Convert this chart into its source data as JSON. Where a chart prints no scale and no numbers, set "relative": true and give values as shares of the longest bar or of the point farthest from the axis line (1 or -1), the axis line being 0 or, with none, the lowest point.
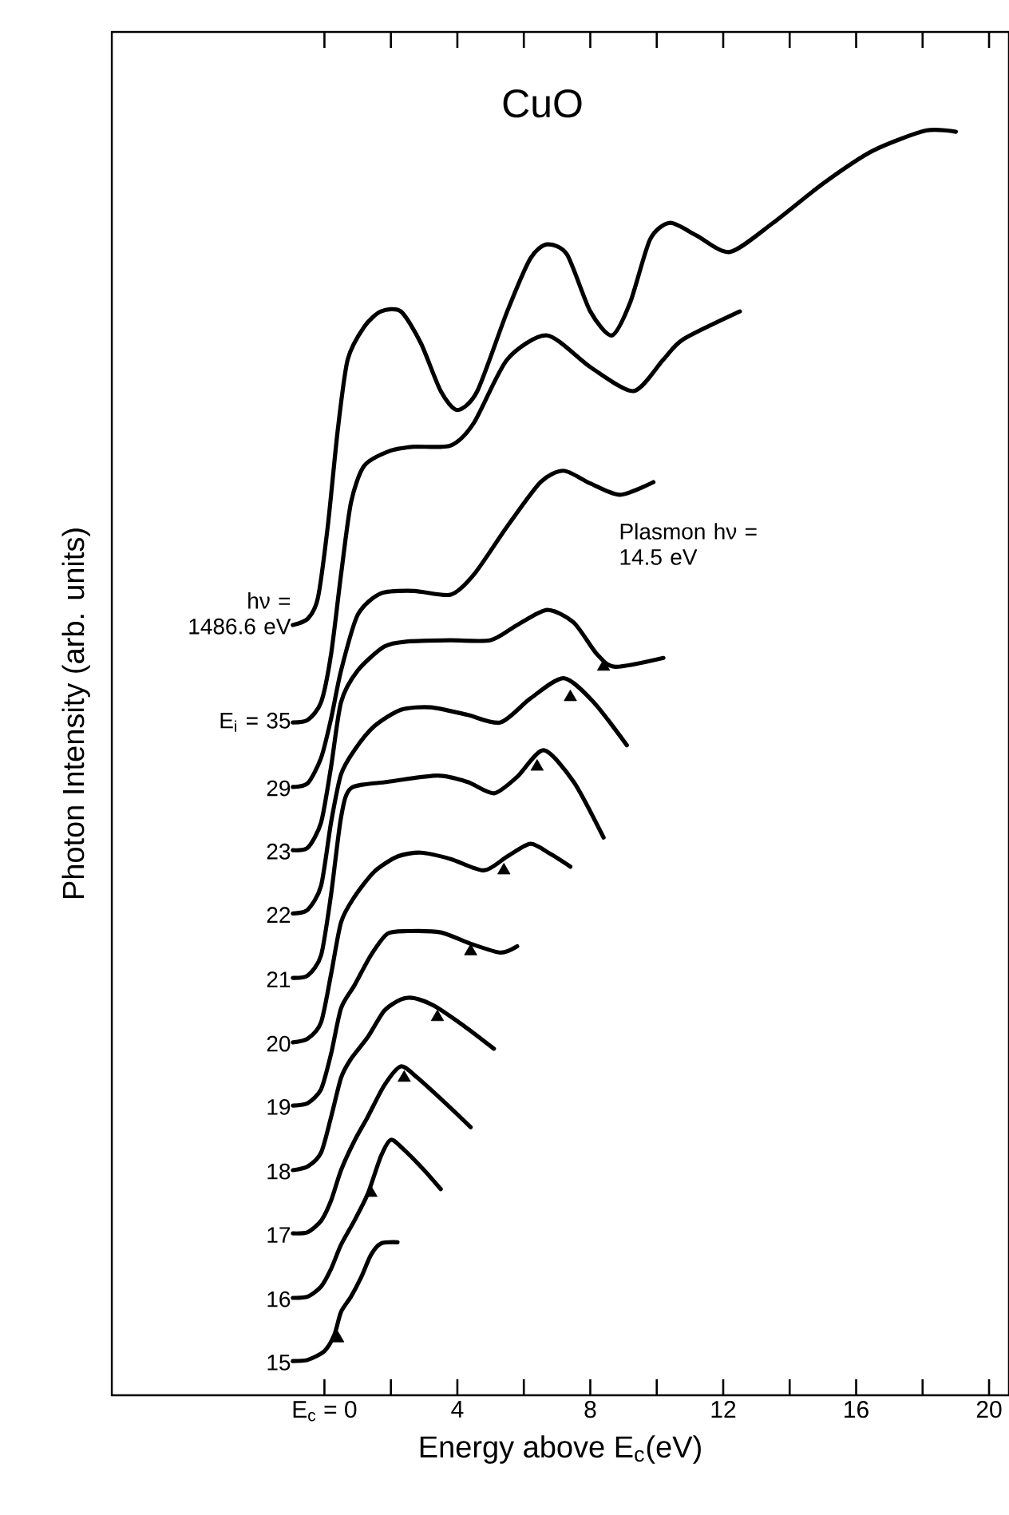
{
  "chart_data": {
    "type": "line",
    "title": "CuO",
    "xlabel": "Energy above E$_{c}$(eV)",
    "ylabel": "Photon Intensity (arb. units)",
    "relative": true,
    "marker": "none",
    "line_style": "solid",
    "xlim": [
      -6.4,
      20.6
    ],
    "xticks": [
      {
        "value": 0,
        "label": "E$_{c}$ = 0"
      },
      {
        "value": 2,
        "label": null
      },
      4,
      {
        "value": 6,
        "label": null
      },
      8,
      {
        "value": 10,
        "label": null
      },
      12,
      {
        "value": 14,
        "label": null
      },
      16,
      {
        "value": 18,
        "label": null
      },
      20
    ],
    "annotations": [
      "Plasmon hν = 14.5 eV"
    ],
    "series": [
      {
        "name": "15",
        "color": "#000000",
        "x": [
          -0.95,
          -0.5,
          0,
          0.3,
          0.5,
          0.8,
          1.1,
          1.4,
          1.7,
          2.2
        ],
        "values": [
          0.027,
          0.028,
          0.035,
          0.048,
          0.066,
          0.078,
          0.093,
          0.111,
          0.12,
          0.121
        ]
      },
      {
        "name": "16",
        "color": "#000000",
        "x": [
          -0.95,
          -0.5,
          -0.1,
          0.2,
          0.5,
          0.9,
          1.3,
          1.7,
          2.0,
          2.4,
          3.0,
          3.5
        ],
        "values": [
          0.077,
          0.078,
          0.086,
          0.1,
          0.119,
          0.138,
          0.159,
          0.189,
          0.202,
          0.194,
          0.178,
          0.163
        ]
      },
      {
        "name": "17",
        "color": "#000000",
        "x": [
          -0.95,
          -0.5,
          -0.1,
          0.2,
          0.5,
          0.9,
          1.3,
          1.8,
          2.3,
          2.8,
          3.6,
          4.4
        ],
        "values": [
          0.128,
          0.129,
          0.138,
          0.154,
          0.178,
          0.201,
          0.22,
          0.245,
          0.26,
          0.251,
          0.232,
          0.212
        ]
      },
      {
        "name": "18",
        "color": "#000000",
        "x": [
          -0.95,
          -0.5,
          -0.1,
          0.2,
          0.5,
          0.8,
          1.3,
          1.8,
          2.3,
          2.7,
          3.3,
          4.2,
          5.1
        ],
        "values": [
          0.178,
          0.181,
          0.192,
          0.22,
          0.251,
          0.266,
          0.283,
          0.304,
          0.313,
          0.314,
          0.308,
          0.292,
          0.274
        ]
      },
      {
        "name": "19",
        "color": "#000000",
        "x": [
          -0.95,
          -0.5,
          -0.1,
          0.2,
          0.5,
          0.9,
          1.4,
          1.9,
          2.5,
          3.5,
          4.4,
          5.3,
          5.8
        ],
        "values": [
          0.229,
          0.231,
          0.242,
          0.27,
          0.306,
          0.324,
          0.348,
          0.365,
          0.367,
          0.366,
          0.357,
          0.35,
          0.355
        ]
      },
      {
        "name": "20",
        "color": "#000000",
        "x": [
          -0.95,
          -0.5,
          -0.1,
          0.2,
          0.5,
          0.9,
          1.5,
          2.2,
          2.9,
          3.8,
          4.8,
          5.5,
          6.2,
          6.8,
          7.4
        ],
        "values": [
          0.279,
          0.282,
          0.295,
          0.333,
          0.374,
          0.394,
          0.414,
          0.426,
          0.429,
          0.424,
          0.415,
          0.426,
          0.436,
          0.428,
          0.418
        ]
      },
      {
        "name": "21",
        "color": "#000000",
        "x": [
          -0.95,
          -0.5,
          -0.1,
          0.2,
          0.5,
          0.8,
          1.9,
          3.4,
          4.3,
          5.1,
          5.8,
          6.6,
          7.5,
          8.4
        ],
        "values": [
          0.33,
          0.332,
          0.348,
          0.396,
          0.457,
          0.48,
          0.485,
          0.49,
          0.485,
          0.476,
          0.489,
          0.51,
          0.485,
          0.441
        ]
      },
      {
        "name": "22",
        "color": "#000000",
        "x": [
          -0.95,
          -0.5,
          -0.1,
          0.2,
          0.5,
          0.9,
          1.5,
          2.3,
          3.2,
          4.3,
          5.3,
          6.2,
          7.2,
          8.1,
          9.1
        ],
        "values": [
          0.381,
          0.384,
          0.403,
          0.453,
          0.491,
          0.51,
          0.529,
          0.542,
          0.544,
          0.538,
          0.532,
          0.551,
          0.567,
          0.548,
          0.514
        ]
      },
      {
        "name": "23",
        "color": "#000000",
        "x": [
          -0.95,
          -0.5,
          -0.1,
          0.2,
          0.5,
          1.0,
          1.8,
          2.5,
          3.8,
          5.0,
          5.8,
          6.7,
          7.5,
          8.2,
          8.75,
          10.2
        ],
        "values": [
          0.431,
          0.433,
          0.453,
          0.497,
          0.548,
          0.573,
          0.592,
          0.596,
          0.597,
          0.597,
          0.609,
          0.621,
          0.611,
          0.586,
          0.576,
          0.583
        ]
      },
      {
        "name": "29",
        "color": "#000000",
        "x": [
          -0.95,
          -0.5,
          -0.1,
          0.2,
          0.5,
          1.0,
          1.7,
          2.7,
          3.8,
          4.5,
          5.5,
          6.5,
          7.2,
          8.0,
          8.9,
          9.9
        ],
        "values": [
          0.481,
          0.484,
          0.504,
          0.535,
          0.573,
          0.617,
          0.634,
          0.636,
          0.633,
          0.649,
          0.687,
          0.722,
          0.731,
          0.721,
          0.712,
          0.722
        ]
      },
      {
        "name": "E$_{i}$ = 35",
        "color": "#000000",
        "x": [
          -0.95,
          -0.5,
          -0.1,
          0.2,
          0.5,
          0.8,
          1.2,
          2.0,
          2.7,
          3.8,
          4.5,
          5.5,
          6.7,
          8.0,
          9.3,
          10.2,
          10.8,
          12.5
        ],
        "values": [
          0.532,
          0.534,
          0.548,
          0.586,
          0.649,
          0.706,
          0.735,
          0.747,
          0.75,
          0.751,
          0.769,
          0.819,
          0.838,
          0.813,
          0.794,
          0.819,
          0.835,
          0.857
        ]
      },
      {
        "name": "hν = 1486.6 eV",
        "color": "#000000",
        "x": [
          -0.95,
          -0.5,
          -0.2,
          0.1,
          0.4,
          0.7,
          1.2,
          1.7,
          2.3,
          2.9,
          3.5,
          4.0,
          4.6,
          5.5,
          6.2,
          6.7,
          7.3,
          8.0,
          8.65,
          9.2,
          9.8,
          10.4,
          11.2,
          12.2,
          13.5,
          15,
          16.5,
          18.1,
          19.0
        ],
        "values": [
          0.609,
          0.614,
          0.63,
          0.687,
          0.763,
          0.819,
          0.845,
          0.857,
          0.857,
          0.832,
          0.794,
          0.779,
          0.794,
          0.857,
          0.899,
          0.91,
          0.902,
          0.857,
          0.838,
          0.864,
          0.914,
          0.927,
          0.917,
          0.904,
          0.927,
          0.958,
          0.984,
          1.0,
          0.999
        ]
      },
      {
        "type": "scatter",
        "marker": "triangle",
        "color": "#000000",
        "x": [
          0.4,
          1.4,
          2.4,
          3.4,
          4.4,
          5.4,
          6.4,
          7.4,
          8.4
        ],
        "values": [
          0.045,
          0.16,
          0.251,
          0.299,
          0.351,
          0.415,
          0.497,
          0.552,
          0.576
        ]
      }
    ]
  }
}
